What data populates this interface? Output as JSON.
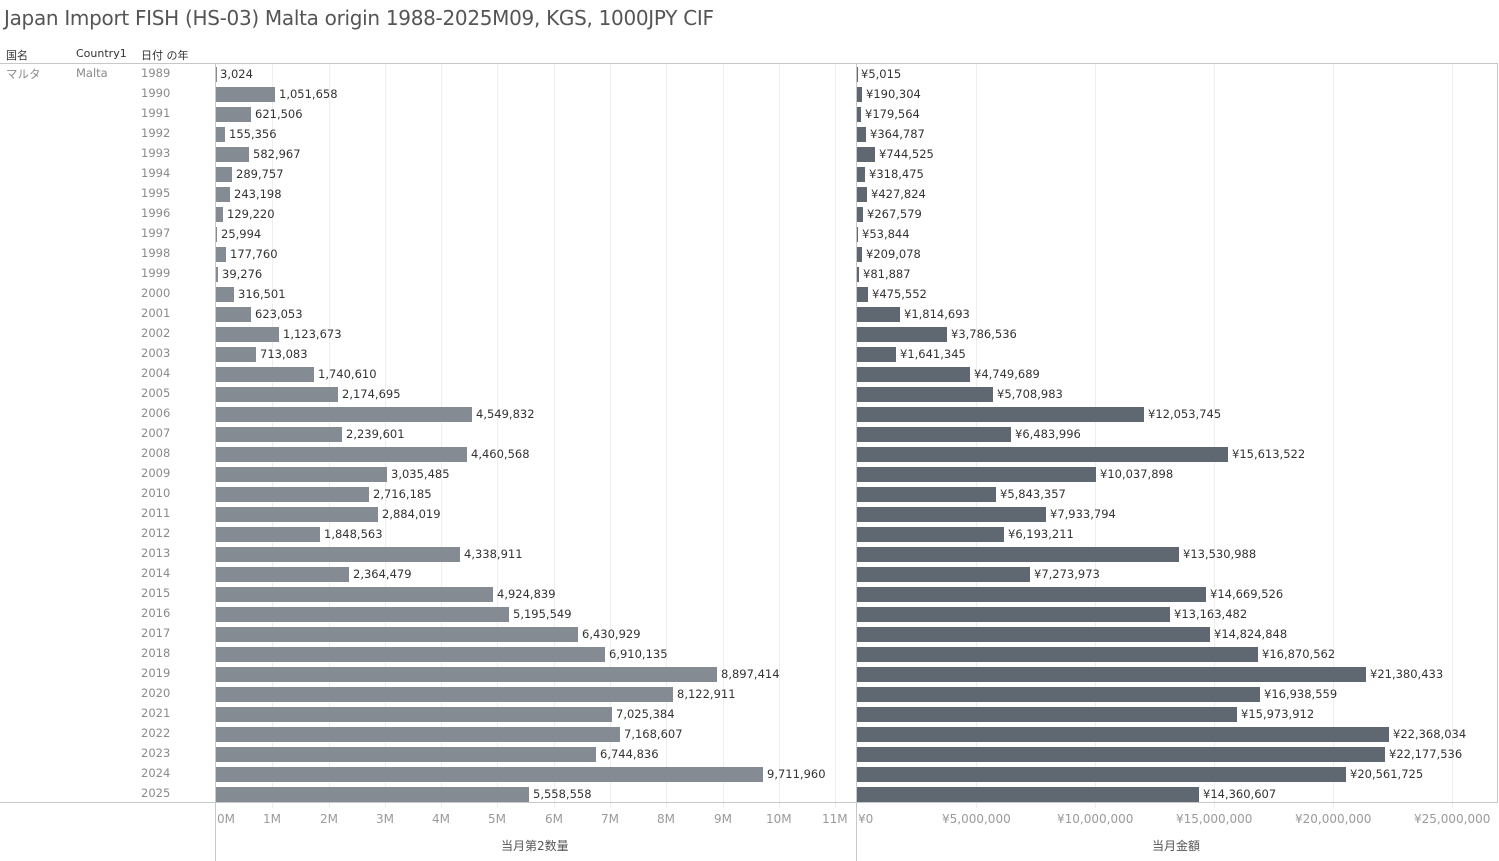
{
  "title": "Japan Import FISH (HS-03) Malta origin 1988-2025M09, KGS, 1000JPY CIF",
  "headers": {
    "col1": "国名",
    "col2": "Country1",
    "col3": "日付 の年"
  },
  "row_header": {
    "country_jp": "マルタ",
    "country_en": "Malta"
  },
  "chart_data": [
    {
      "type": "bar",
      "orientation": "horizontal",
      "xlabel": "当月第2数量",
      "ylabel": "日付 の年",
      "xlim": [
        0,
        11350000
      ],
      "grid": true,
      "tick_values": [
        0,
        1000000,
        2000000,
        3000000,
        4000000,
        5000000,
        6000000,
        7000000,
        8000000,
        9000000,
        10000000,
        11000000
      ],
      "tick_labels": [
        "0M",
        "1M",
        "2M",
        "3M",
        "4M",
        "5M",
        "6M",
        "7M",
        "8M",
        "9M",
        "10M",
        "11M"
      ],
      "color": "#848b92",
      "categories": [
        "1989",
        "1990",
        "1991",
        "1992",
        "1993",
        "1994",
        "1995",
        "1996",
        "1997",
        "1998",
        "1999",
        "2000",
        "2001",
        "2002",
        "2003",
        "2004",
        "2005",
        "2006",
        "2007",
        "2008",
        "2009",
        "2010",
        "2011",
        "2012",
        "2013",
        "2014",
        "2015",
        "2016",
        "2017",
        "2018",
        "2019",
        "2020",
        "2021",
        "2022",
        "2023",
        "2024",
        "2025"
      ],
      "values": [
        3024,
        1051658,
        621506,
        155356,
        582967,
        289757,
        243198,
        129220,
        25994,
        177760,
        39276,
        316501,
        623053,
        1123673,
        713083,
        1740610,
        2174695,
        4549832,
        2239601,
        4460568,
        3035485,
        2716185,
        2884019,
        1848563,
        4338911,
        2364479,
        4924839,
        5195549,
        6430929,
        6910135,
        8897414,
        8122911,
        7025384,
        7168607,
        6744836,
        9711960,
        5558558
      ],
      "value_labels": [
        "3,024",
        "1,051,658",
        "621,506",
        "155,356",
        "582,967",
        "289,757",
        "243,198",
        "129,220",
        "25,994",
        "177,760",
        "39,276",
        "316,501",
        "623,053",
        "1,123,673",
        "713,083",
        "1,740,610",
        "2,174,695",
        "4,549,832",
        "2,239,601",
        "4,460,568",
        "3,035,485",
        "2,716,185",
        "2,884,019",
        "1,848,563",
        "4,338,911",
        "2,364,479",
        "4,924,839",
        "5,195,549",
        "6,430,929",
        "6,910,135",
        "8,897,414",
        "8,122,911",
        "7,025,384",
        "7,168,607",
        "6,744,836",
        "9,711,960",
        "5,558,558"
      ]
    },
    {
      "type": "bar",
      "orientation": "horizontal",
      "xlabel": "当月金額",
      "ylabel": "日付 の年",
      "xlim": [
        0,
        26900000
      ],
      "grid": true,
      "tick_values": [
        0,
        5000000,
        10000000,
        15000000,
        20000000,
        25000000
      ],
      "tick_labels": [
        "¥0",
        "¥5,000,000",
        "¥10,000,000",
        "¥15,000,000",
        "¥20,000,000",
        "¥25,000,000"
      ],
      "color": "#5f6770",
      "categories": [
        "1989",
        "1990",
        "1991",
        "1992",
        "1993",
        "1994",
        "1995",
        "1996",
        "1997",
        "1998",
        "1999",
        "2000",
        "2001",
        "2002",
        "2003",
        "2004",
        "2005",
        "2006",
        "2007",
        "2008",
        "2009",
        "2010",
        "2011",
        "2012",
        "2013",
        "2014",
        "2015",
        "2016",
        "2017",
        "2018",
        "2019",
        "2020",
        "2021",
        "2022",
        "2023",
        "2024",
        "2025"
      ],
      "values": [
        5015,
        190304,
        179564,
        364787,
        744525,
        318475,
        427824,
        267579,
        53844,
        209078,
        81887,
        475552,
        1814693,
        3786536,
        1641345,
        4749689,
        5708983,
        12053745,
        6483996,
        15613522,
        10037898,
        5843357,
        7933794,
        6193211,
        13530988,
        7273973,
        14669526,
        13163482,
        14824848,
        16870562,
        21380433,
        16938559,
        15973912,
        22368034,
        22177536,
        20561725,
        14360607
      ],
      "value_labels": [
        "¥5,015",
        "¥190,304",
        "¥179,564",
        "¥364,787",
        "¥744,525",
        "¥318,475",
        "¥427,824",
        "¥267,579",
        "¥53,844",
        "¥209,078",
        "¥81,887",
        "¥475,552",
        "¥1,814,693",
        "¥3,786,536",
        "¥1,641,345",
        "¥4,749,689",
        "¥5,708,983",
        "¥12,053,745",
        "¥6,483,996",
        "¥15,613,522",
        "¥10,037,898",
        "¥5,843,357",
        "¥7,933,794",
        "¥6,193,211",
        "¥13,530,988",
        "¥7,273,973",
        "¥14,669,526",
        "¥13,163,482",
        "¥14,824,848",
        "¥16,870,562",
        "¥21,380,433",
        "¥16,938,559",
        "¥15,973,912",
        "¥22,368,034",
        "¥22,177,536",
        "¥20,561,725",
        "¥14,360,607"
      ]
    }
  ]
}
